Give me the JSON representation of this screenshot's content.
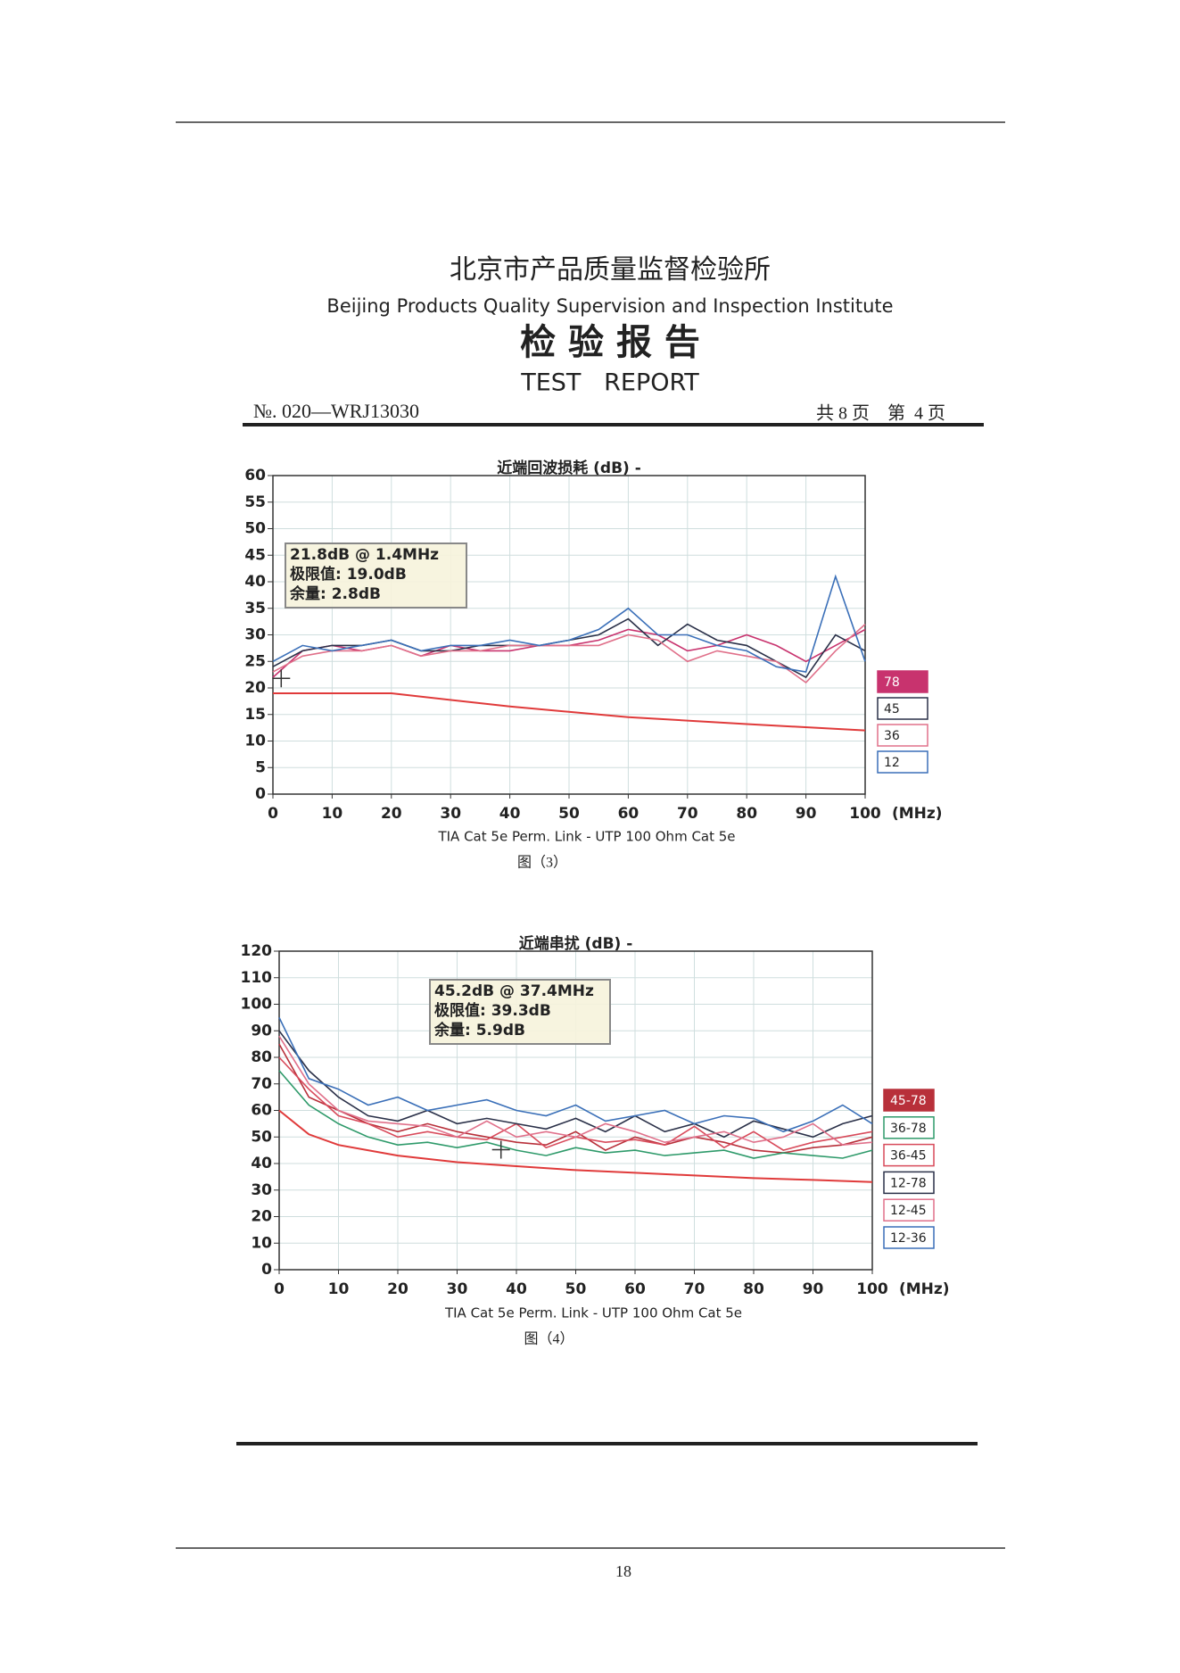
{
  "header": {
    "institute_cn": "北京市产品质量监督检验所",
    "institute_en": "Beijing Products Quality Supervision and Inspection Institute",
    "title_cn": "检 验 报 告",
    "title_en": "TEST   REPORT",
    "report_no": "№. 020—WRJ13030",
    "page_info": "共 8 页    第  4 页"
  },
  "chart_data": [
    {
      "type": "line",
      "title": "近端回波损耗 (dB) -",
      "subtitle": "TIA Cat 5e Perm. Link - UTP 100 Ohm Cat 5e",
      "x_unit": "(MHz)",
      "caption": "图（3）",
      "annotation": [
        "21.8dB @ 1.4MHz",
        "极限值: 19.0dB",
        "余量: 2.8dB"
      ],
      "marker": {
        "x": 1.4,
        "y": 21.8
      },
      "x": [
        0,
        5,
        10,
        15,
        20,
        25,
        30,
        35,
        40,
        45,
        50,
        55,
        60,
        65,
        70,
        75,
        80,
        85,
        90,
        95,
        100
      ],
      "series": [
        {
          "name": "78",
          "color": "#c8336e",
          "values": [
            22,
            27,
            28,
            27,
            28,
            26,
            28,
            27,
            27,
            28,
            28,
            29,
            31,
            30,
            27,
            28,
            30,
            28,
            25,
            28,
            31
          ]
        },
        {
          "name": "45",
          "color": "#2a3048",
          "values": [
            24,
            27,
            28,
            28,
            29,
            27,
            27,
            28,
            28,
            28,
            29,
            30,
            33,
            28,
            32,
            29,
            28,
            25,
            22,
            30,
            27
          ]
        },
        {
          "name": "36",
          "color": "#e0708a",
          "values": [
            23,
            26,
            27,
            27,
            28,
            26,
            27,
            27,
            28,
            28,
            28,
            28,
            30,
            29,
            25,
            27,
            26,
            25,
            21,
            27,
            32
          ]
        },
        {
          "name": "12",
          "color": "#3a6fb8",
          "values": [
            25,
            28,
            27,
            28,
            29,
            27,
            28,
            28,
            29,
            28,
            29,
            31,
            35,
            30,
            30,
            28,
            27,
            24,
            23,
            41,
            25
          ]
        }
      ],
      "limit_line": {
        "color": "#e03a3a",
        "x": [
          0,
          20,
          40,
          60,
          80,
          100
        ],
        "values": [
          19,
          19,
          16.5,
          14.5,
          13.2,
          12
        ]
      },
      "xlim": [
        0,
        100
      ],
      "xticks": [
        0,
        10,
        20,
        30,
        40,
        50,
        60,
        70,
        80,
        90,
        100
      ],
      "ylim": [
        0,
        60
      ],
      "yticks": [
        0,
        5,
        10,
        15,
        20,
        25,
        30,
        35,
        40,
        45,
        50,
        55,
        60
      ],
      "grid": true
    },
    {
      "type": "line",
      "title": "近端串扰 (dB) -",
      "subtitle": "TIA Cat 5e Perm. Link - UTP 100 Ohm Cat 5e",
      "x_unit": "(MHz)",
      "caption": "图（4）",
      "annotation": [
        "45.2dB @ 37.4MHz",
        "极限值: 39.3dB",
        "余量: 5.9dB"
      ],
      "marker": {
        "x": 37.4,
        "y": 45.2
      },
      "x": [
        0,
        5,
        10,
        15,
        20,
        25,
        30,
        35,
        40,
        45,
        50,
        55,
        60,
        65,
        70,
        75,
        80,
        85,
        90,
        95,
        100
      ],
      "series": [
        {
          "name": "45-78",
          "color": "#b8303a",
          "values": [
            85,
            65,
            60,
            55,
            52,
            55,
            52,
            50,
            48,
            47,
            52,
            45,
            50,
            47,
            50,
            48,
            45,
            44,
            46,
            47,
            50
          ]
        },
        {
          "name": "36-78",
          "color": "#2e9a6a",
          "values": [
            75,
            62,
            55,
            50,
            47,
            48,
            46,
            48,
            45,
            43,
            46,
            44,
            45,
            43,
            44,
            45,
            42,
            44,
            43,
            42,
            45
          ]
        },
        {
          "name": "36-45",
          "color": "#d84a5a",
          "values": [
            80,
            68,
            58,
            55,
            50,
            52,
            50,
            49,
            55,
            46,
            50,
            48,
            49,
            47,
            54,
            46,
            52,
            45,
            48,
            50,
            52
          ]
        },
        {
          "name": "12-78",
          "color": "#2a3048",
          "values": [
            90,
            75,
            65,
            58,
            56,
            60,
            55,
            57,
            55,
            53,
            57,
            52,
            58,
            52,
            55,
            50,
            56,
            53,
            50,
            55,
            58
          ]
        },
        {
          "name": "12-45",
          "color": "#e0708a",
          "values": [
            88,
            70,
            60,
            56,
            55,
            54,
            50,
            56,
            50,
            52,
            50,
            55,
            52,
            48,
            50,
            52,
            48,
            50,
            55,
            47,
            48
          ]
        },
        {
          "name": "12-36",
          "color": "#3a6fb8",
          "values": [
            95,
            72,
            68,
            62,
            65,
            60,
            62,
            64,
            60,
            58,
            62,
            56,
            58,
            60,
            55,
            58,
            57,
            52,
            56,
            62,
            55
          ]
        }
      ],
      "limit_line": {
        "color": "#e03a3a",
        "x": [
          0,
          5,
          10,
          20,
          30,
          40,
          50,
          60,
          70,
          80,
          90,
          100
        ],
        "values": [
          60,
          51,
          47,
          43,
          40.5,
          39,
          37.5,
          36.5,
          35.5,
          34.5,
          33.8,
          33
        ]
      },
      "xlim": [
        0,
        100
      ],
      "xticks": [
        0,
        10,
        20,
        30,
        40,
        50,
        60,
        70,
        80,
        90,
        100
      ],
      "ylim": [
        0,
        120
      ],
      "yticks": [
        0,
        10,
        20,
        30,
        40,
        50,
        60,
        70,
        80,
        90,
        100,
        110,
        120
      ],
      "grid": true
    }
  ],
  "page_number": "18"
}
